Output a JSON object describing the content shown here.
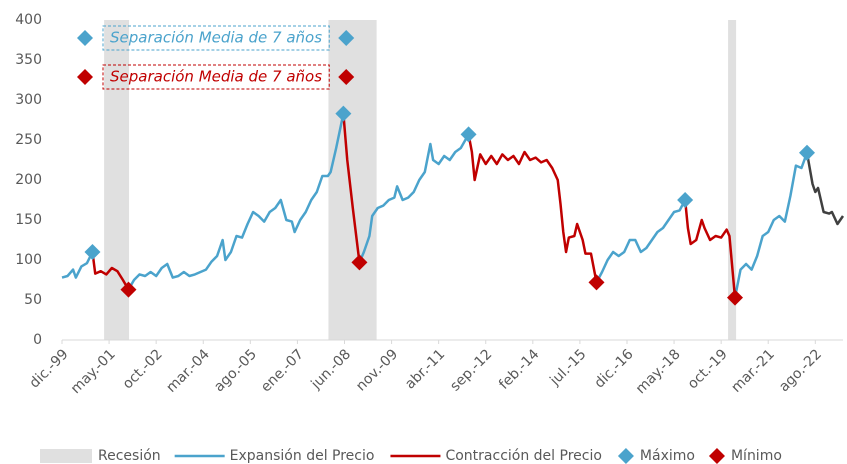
{
  "chart_data": {
    "type": "line",
    "xlim": [
      0,
      282
    ],
    "xticks": [
      {
        "value": 0,
        "label": "dic.-99"
      },
      {
        "value": 17,
        "label": "may.-01"
      },
      {
        "value": 34,
        "label": "oct.-02"
      },
      {
        "value": 51,
        "label": "mar.-04"
      },
      {
        "value": 68,
        "label": "ago.-05"
      },
      {
        "value": 85,
        "label": "ene.-07"
      },
      {
        "value": 102,
        "label": "jun.-08"
      },
      {
        "value": 119,
        "label": "nov.-09"
      },
      {
        "value": 136,
        "label": "abr.-11"
      },
      {
        "value": 153,
        "label": "sep.-12"
      },
      {
        "value": 170,
        "label": "feb.-14"
      },
      {
        "value": 187,
        "label": "jul.-15"
      },
      {
        "value": 204,
        "label": "dic.-16"
      },
      {
        "value": 221,
        "label": "may.-18"
      },
      {
        "value": 238,
        "label": "oct.-19"
      },
      {
        "value": 255,
        "label": "mar.-21"
      },
      {
        "value": 272,
        "label": "ago.-22"
      }
    ],
    "ylim": [
      0,
      400
    ],
    "yticks": [
      0,
      50,
      100,
      150,
      200,
      250,
      300,
      350,
      400
    ],
    "recession": {
      "name": "Recesión",
      "color": "#e0e0e0",
      "ranges": [
        [
          15.2,
          24.2
        ],
        [
          96.2,
          113.6
        ],
        [
          240.5,
          243.4
        ]
      ]
    },
    "series": [
      {
        "name": "Expansión del Precio",
        "color": "#4ba3cc",
        "x": [
          0,
          2,
          4,
          5,
          7,
          9,
          11,
          null,
          24,
          26,
          28,
          30,
          32,
          34,
          36,
          38,
          40,
          42,
          44,
          46,
          48,
          50,
          52,
          54,
          56,
          57,
          58,
          59,
          61,
          63,
          65,
          67,
          69,
          71,
          73,
          75,
          77,
          79,
          81,
          83,
          84,
          86,
          88,
          90,
          92,
          94,
          96,
          97,
          99,
          101.6,
          null,
          107.4,
          109,
          111,
          112,
          114,
          116,
          118,
          120,
          121,
          123,
          125,
          127,
          129,
          131,
          133,
          134,
          136,
          138,
          140,
          142,
          144,
          146.8,
          null,
          193,
          195,
          197,
          199,
          201,
          203,
          205,
          207,
          209,
          211,
          213,
          215,
          217,
          219,
          221,
          223,
          225,
          null,
          243,
          245,
          247,
          249,
          251,
          253,
          255,
          257,
          259,
          261,
          263,
          265,
          267,
          269
        ],
        "values": [
          78,
          80,
          88,
          78,
          92,
          96,
          110,
          null,
          63,
          75,
          82,
          80,
          85,
          80,
          90,
          95,
          78,
          80,
          85,
          80,
          82,
          85,
          88,
          98,
          105,
          115,
          125,
          100,
          110,
          130,
          128,
          145,
          160,
          155,
          148,
          160,
          165,
          175,
          150,
          148,
          135,
          150,
          160,
          175,
          185,
          205,
          205,
          210,
          240,
          283,
          null,
          97,
          110,
          130,
          155,
          165,
          168,
          175,
          178,
          192,
          175,
          178,
          185,
          200,
          210,
          245,
          225,
          220,
          230,
          225,
          235,
          240,
          257,
          null,
          72,
          85,
          100,
          110,
          105,
          110,
          125,
          125,
          110,
          115,
          125,
          135,
          140,
          150,
          160,
          162,
          175,
          null,
          53,
          88,
          95,
          88,
          105,
          130,
          135,
          150,
          155,
          148,
          180,
          218,
          215,
          234
        ]
      },
      {
        "name": "Contracción del Precio",
        "color": "#c00000",
        "x": [
          11,
          12,
          14,
          16,
          18,
          20,
          22,
          24,
          null,
          101.6,
          103,
          105,
          107.4,
          null,
          146.8,
          148,
          149,
          151,
          153,
          155,
          157,
          159,
          161,
          163,
          165,
          167,
          169,
          171,
          173,
          175,
          177,
          179,
          180,
          181,
          182,
          183,
          185,
          186,
          188,
          189,
          191,
          193,
          null,
          225,
          226,
          227,
          229,
          231,
          232,
          234,
          236,
          238,
          240,
          241,
          243
        ],
        "values": [
          110,
          83,
          86,
          82,
          90,
          86,
          75,
          63,
          null,
          283,
          225,
          165,
          97,
          null,
          257,
          235,
          200,
          232,
          220,
          230,
          220,
          232,
          225,
          230,
          220,
          235,
          225,
          228,
          222,
          225,
          215,
          200,
          170,
          135,
          110,
          128,
          130,
          145,
          125,
          108,
          108,
          72,
          null,
          175,
          140,
          120,
          125,
          150,
          140,
          125,
          130,
          128,
          138,
          130,
          53
        ]
      },
      {
        "color": "#404040",
        "x": [
          269,
          271,
          272,
          273,
          275,
          277,
          278,
          280,
          282
        ],
        "values": [
          234,
          195,
          185,
          190,
          160,
          158,
          160,
          145,
          155
        ]
      }
    ],
    "markers": [
      {
        "name": "Máximo",
        "color": "#4ba3cc",
        "x": [
          11,
          101.6,
          146.8,
          225,
          269
        ],
        "values": [
          110,
          283,
          257,
          175,
          234
        ]
      },
      {
        "name": "Mínimo",
        "color": "#c00000",
        "x": [
          24,
          107.4,
          193,
          243
        ],
        "values": [
          63,
          97,
          72,
          53
        ]
      }
    ],
    "annotations": [
      {
        "text": "Separación Media de 7 años",
        "color": "#4ba3cc"
      },
      {
        "text": "Separación Media de 7 años",
        "color": "#c00000"
      }
    ]
  }
}
